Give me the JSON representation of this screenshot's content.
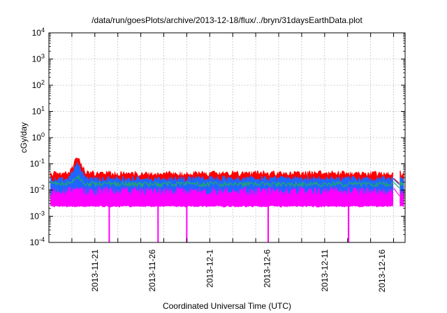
{
  "chart_data": {
    "type": "area",
    "title": "/data/run/goesPlots/archive/2013-12-18/flux/../bryn/31daysEarthData.plot",
    "xlabel": "Coordinated Universal Time (UTC)",
    "ylabel": "cGy/day",
    "y_scale": "log",
    "ylim": [
      0.0001,
      10000
    ],
    "xlim": [
      "2013-11-17",
      "2013-12-18"
    ],
    "grid": true,
    "x_ticks": [
      "2013-11-21",
      "2013-11-26",
      "2013-12-1",
      "2013-12-6",
      "2013-12-11",
      "2013-12-16"
    ],
    "x_tick_dates": [
      "2013-11-21",
      "2013-11-26",
      "2013-12-01",
      "2013-12-06",
      "2013-12-11",
      "2013-12-16"
    ],
    "y_ticks": [
      {
        "mantissa": "10",
        "exp": "-4"
      },
      {
        "mantissa": "10",
        "exp": "-3"
      },
      {
        "mantissa": "10",
        "exp": "-2"
      },
      {
        "mantissa": "10",
        "exp": "-1"
      },
      {
        "mantissa": "10",
        "exp": "0"
      },
      {
        "mantissa": "10",
        "exp": "1"
      },
      {
        "mantissa": "10",
        "exp": "2"
      },
      {
        "mantissa": "10",
        "exp": "3"
      },
      {
        "mantissa": "10",
        "exp": "4"
      }
    ],
    "y_tick_values": [
      0.0001,
      0.001,
      0.01,
      0.1,
      1,
      10,
      100,
      1000,
      10000
    ],
    "series_colors": [
      "#ff0000",
      "#1e66ff",
      "#22aa66",
      "#ff00ff"
    ],
    "series": [
      {
        "color": "#ff0000",
        "typical_value": 0.045,
        "peak": {
          "date": "2013-11-19T12:00",
          "value": 0.16
        }
      },
      {
        "color": "#1e66ff",
        "typical_value": 0.03
      },
      {
        "color": "#22aa66",
        "typical_value": 0.018
      },
      {
        "color": "#ff00ff",
        "typical_value_top": 0.01,
        "typical_value_bottom": 0.0023,
        "dropouts": [
          "2013-11-22T06:00",
          "2013-11-26T12:00",
          "2013-11-29T00:00",
          "2013-12-06T02:00",
          "2013-12-13T02:00"
        ]
      }
    ],
    "data_gaps": [
      {
        "start": "2013-12-17T00:00",
        "end": "2013-12-17T12:00"
      }
    ]
  }
}
